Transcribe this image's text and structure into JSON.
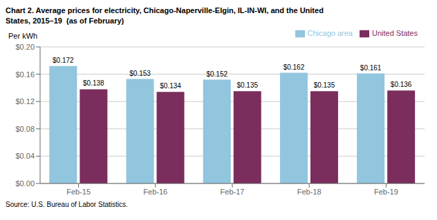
{
  "chart_data": {
    "type": "bar",
    "title": "Chart 2. Average prices for electricity, Chicago-Naperville-Elgin, IL-IN-WI, and the United",
    "subtitle": "States, 2015–19  (as of February)",
    "y_label": "Per kWh",
    "annotations": [
      "Source: U.S. Bureau of Labor Statistics."
    ],
    "categories": [
      "Feb-15",
      "Feb-16",
      "Feb-17",
      "Feb-18",
      "Feb-19"
    ],
    "series": [
      {
        "name": "Chicago area",
        "color": "#92C5DE",
        "values": [
          0.172,
          0.153,
          0.152,
          0.162,
          0.161
        ],
        "value_labels": [
          "$0.172",
          "$0.153",
          "$0.152",
          "$0.162",
          "$0.161"
        ]
      },
      {
        "name": "United States",
        "color": "#7B2D5E",
        "values": [
          0.138,
          0.134,
          0.135,
          0.135,
          0.136
        ],
        "value_labels": [
          "$0.138",
          "$0.134",
          "$0.135",
          "$0.135",
          "$0.136"
        ]
      }
    ],
    "ylim": [
      0,
      0.2
    ],
    "yticks": [
      {
        "value": 0.0,
        "label": "$0.00"
      },
      {
        "value": 0.04,
        "label": "$0.04"
      },
      {
        "value": 0.08,
        "label": "$0.08"
      },
      {
        "value": 0.12,
        "label": "$0.12"
      },
      {
        "value": 0.16,
        "label": "$0.16"
      },
      {
        "value": 0.2,
        "label": "$0.20"
      }
    ],
    "grid": true,
    "legend": "upper right",
    "data_labels": true
  }
}
